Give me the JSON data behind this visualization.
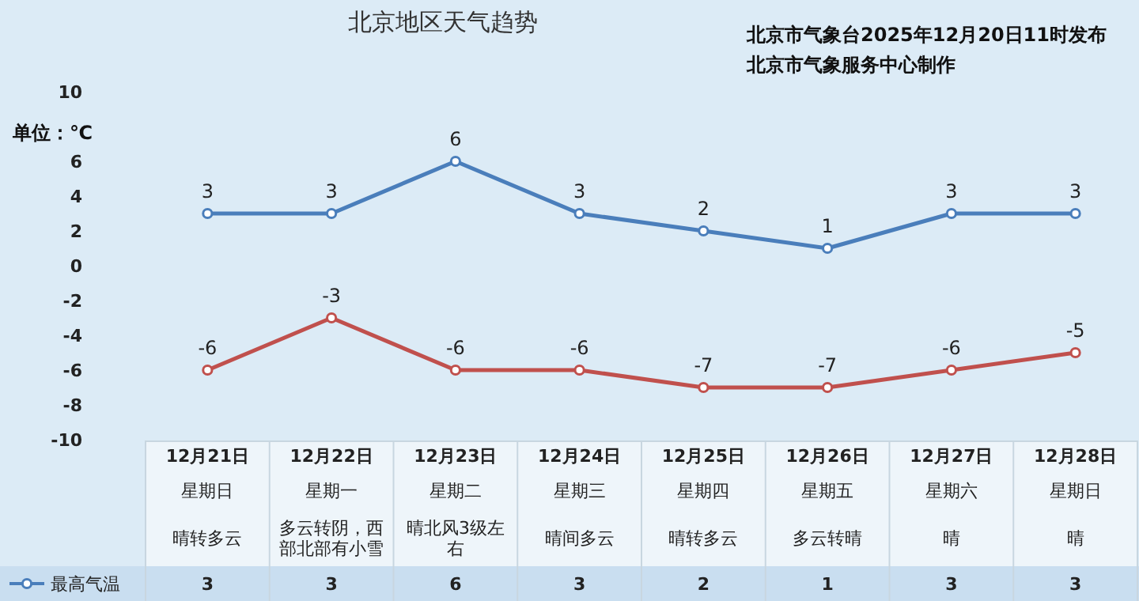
{
  "chart_data": {
    "type": "line",
    "title": "北京地区天气趋势",
    "annotations": [
      "北京市气象台2025年12月20日11时发布",
      "北京市气象服务中心制作",
      "星期日",
      "星期一",
      "星期二",
      "星期三",
      "星期四",
      "星期五",
      "星期六",
      "星期日",
      "晴转多云",
      "多云转阴，西部北部有小雪",
      "晴北风3级左右",
      "晴间多云",
      "晴转多云",
      "多云转晴",
      "晴",
      "晴"
    ],
    "ylabel": "单位：℃",
    "categories": [
      "12月21日",
      "12月22日",
      "12月23日",
      "12月24日",
      "12月25日",
      "12月26日",
      "12月27日",
      "12月28日"
    ],
    "series": [
      {
        "name": "最高气温",
        "color": "#4a7ebb",
        "values": [
          3,
          3,
          6,
          3,
          2,
          1,
          3,
          3
        ],
        "value_labels": [
          "3",
          "3",
          "6",
          "3",
          "2",
          "1",
          "3",
          "3"
        ]
      },
      {
        "color": "#c0504d",
        "values": [
          -6,
          -3,
          -6,
          -6,
          -7,
          -7,
          -6,
          -5
        ]
      }
    ],
    "ylim": [
      -10,
      10
    ],
    "yticks": [
      -10,
      -8,
      -6,
      -4,
      -2,
      0,
      2,
      4,
      6,
      10
    ],
    "marker": "circle",
    "data_labels": true,
    "legend": "bottom",
    "grid": false
  }
}
